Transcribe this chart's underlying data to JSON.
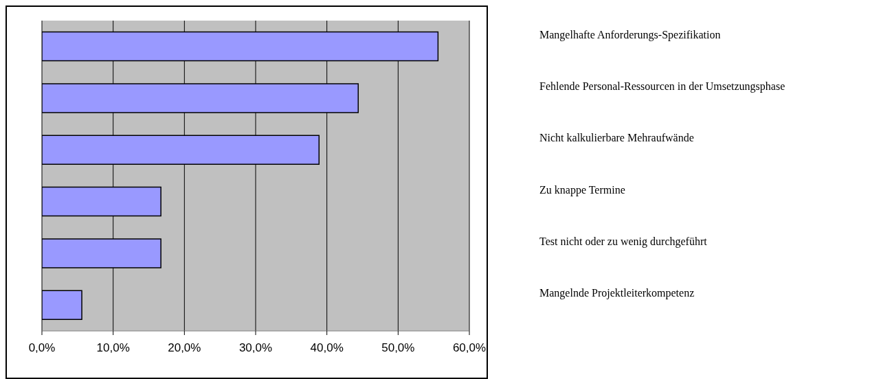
{
  "chart_data": {
    "type": "bar",
    "orientation": "horizontal",
    "categories": [
      "Mangelhafte Anforderungs-Spezifikation",
      "Fehlende Personal-Ressourcen in der Umsetzungsphase",
      "Nicht kalkulierbare Mehraufwände",
      "Zu knappe Termine",
      "Test nicht oder zu wenig durchgeführt",
      "Mangelnde Projektleiterkompetenz"
    ],
    "values": [
      55.6,
      44.4,
      38.9,
      16.7,
      16.7,
      5.6
    ],
    "color": "#9999ff",
    "xlim": [
      0,
      60
    ],
    "xticks": [
      {
        "value": 0,
        "label": "0,0%"
      },
      {
        "value": 10,
        "label": "10,0%"
      },
      {
        "value": 20,
        "label": "20,0%"
      },
      {
        "value": 30,
        "label": "30,0%"
      },
      {
        "value": 40,
        "label": "40,0%"
      },
      {
        "value": 50,
        "label": "50,0%"
      },
      {
        "value": 60,
        "label": "60,0%"
      }
    ],
    "grid": "x"
  }
}
